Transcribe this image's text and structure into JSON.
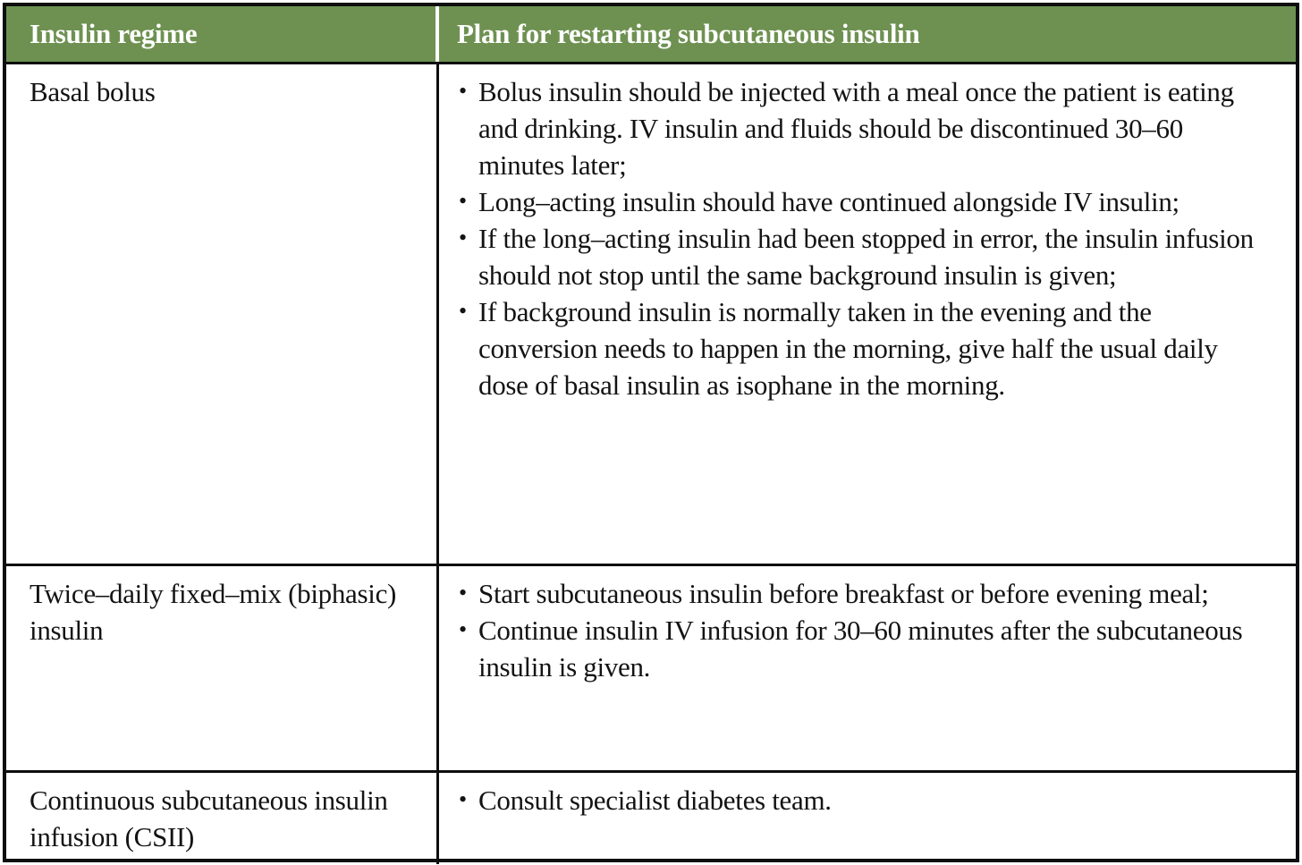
{
  "ui": {
    "bullet": "•"
  },
  "colors": {
    "header_bg": "#6e9151",
    "header_text": "#ffffff",
    "grid_border": "#0e0e0e",
    "body_text": "#131313"
  },
  "table": {
    "columns": [
      "Insulin regime",
      "Plan for restarting subcutaneous insulin"
    ],
    "rows": [
      {
        "regime": "Basal bolus",
        "plan": [
          "Bolus insulin should be injected with a meal once the patient is eating and drinking. IV insulin and fluids should be discontinued 30–60 minutes later;",
          "Long–acting insulin should have continued alongside IV insulin;",
          "If the long–acting insulin had been stopped in error, the insulin infusion should not stop until the same background insulin is given;",
          "If background insulin is normally taken in the evening and the conversion needs to happen in the morning, give half the usual daily dose of basal insulin as isophane in the morning."
        ]
      },
      {
        "regime": "Twice–daily fixed–mix (biphasic) insulin",
        "plan": [
          "Start subcutaneous insulin before breakfast or before evening meal;",
          "Continue insulin IV infusion for 30–60 minutes after the subcutaneous insulin is given."
        ]
      },
      {
        "regime": "Continuous subcutaneous insulin infusion (CSII)",
        "plan": [
          "Consult specialist diabetes team."
        ]
      }
    ]
  }
}
